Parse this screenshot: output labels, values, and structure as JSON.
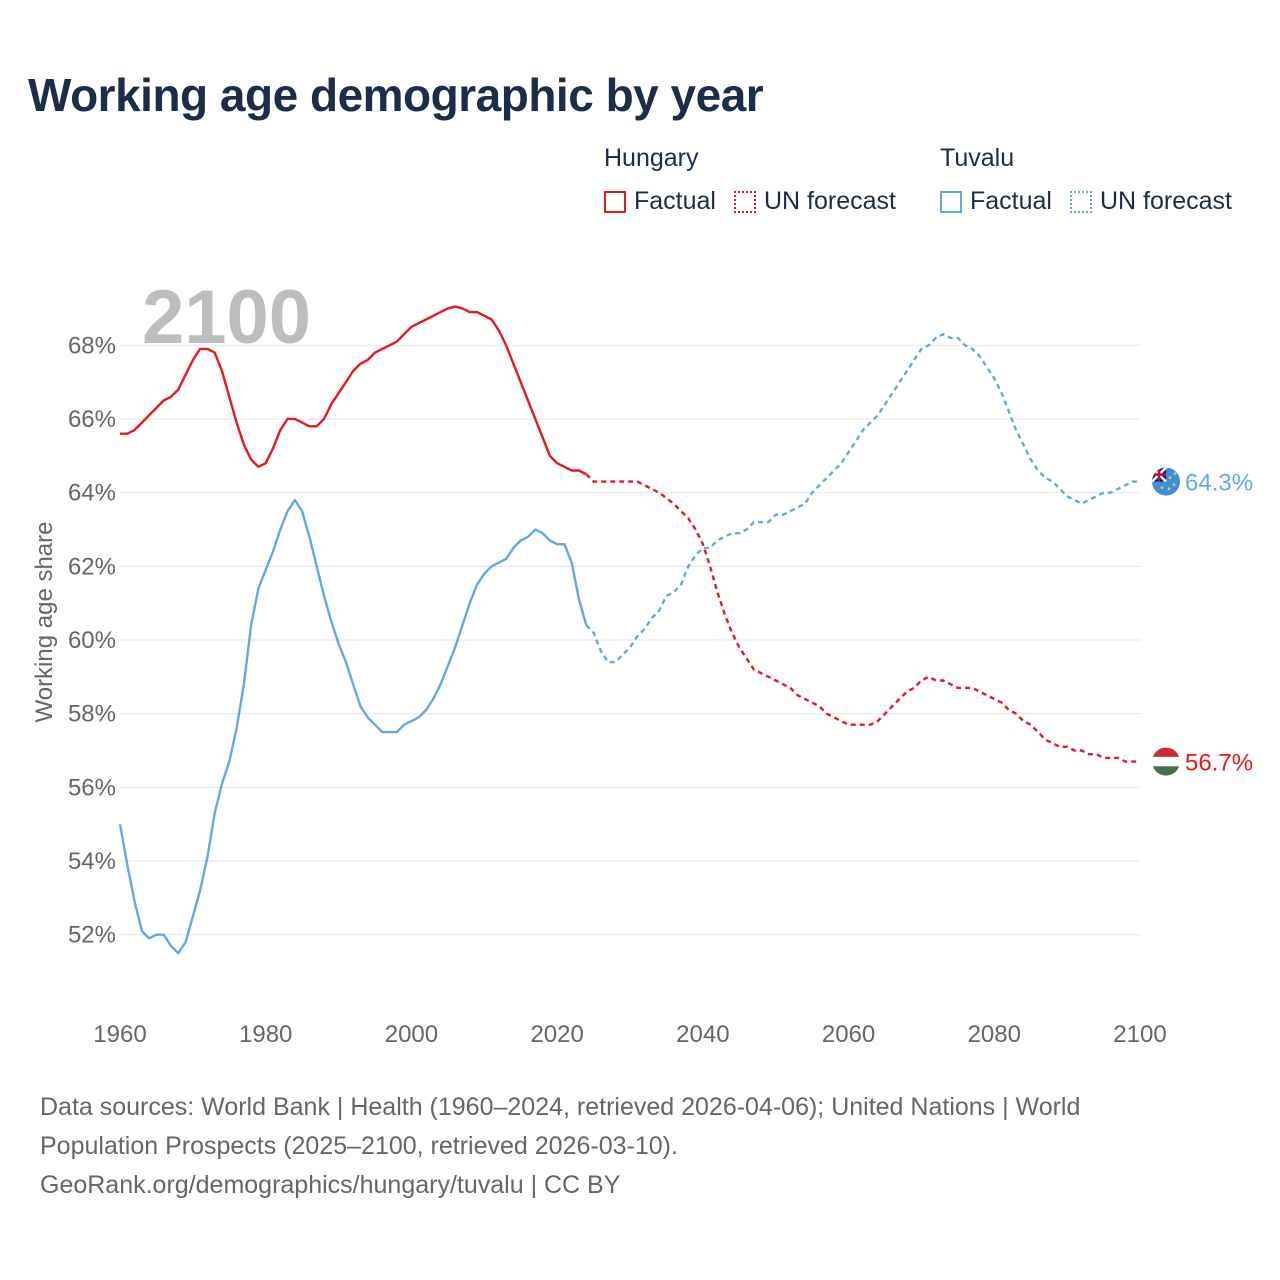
{
  "title": "Working age demographic by year",
  "legend": {
    "countries": [
      {
        "name": "Hungary",
        "factual_label": "Factual",
        "forecast_label": "UN forecast",
        "color": "#e8191b"
      },
      {
        "name": "Tuvalu",
        "factual_label": "Factual",
        "forecast_label": "UN forecast",
        "color": "#63a8e6"
      }
    ]
  },
  "footer": {
    "line1": "Data sources: World Bank | Health (1960–2024, retrieved 2026-04-06); United Nations | World",
    "line2": "Population Prospects (2025–2100, retrieved 2026-03-10).",
    "line3": "GeoRank.org/demographics/hungary/tuvalu | CC BY"
  },
  "chart_data": {
    "type": "line",
    "title": "Working age demographic by year",
    "ylabel": "Working age share",
    "xlabel": "",
    "year_overlay": "2100",
    "xlim": [
      1960,
      2100
    ],
    "ylim": [
      50.5,
      69.5
    ],
    "x_ticks": [
      1960,
      1980,
      2000,
      2020,
      2040,
      2060,
      2080,
      2100
    ],
    "y_ticks": [
      52,
      54,
      56,
      58,
      60,
      62,
      64,
      66,
      68
    ],
    "y_tick_labels": [
      "52%",
      "54%",
      "56%",
      "58%",
      "60%",
      "62%",
      "64%",
      "66%",
      "68%"
    ],
    "factual_end_year": 2024,
    "series": [
      {
        "name": "Hungary",
        "color": "#e8191b",
        "end_label": "56.7%",
        "points": [
          [
            1960,
            65.6
          ],
          [
            1961,
            65.6
          ],
          [
            1962,
            65.7
          ],
          [
            1963,
            65.9
          ],
          [
            1964,
            66.1
          ],
          [
            1965,
            66.3
          ],
          [
            1966,
            66.5
          ],
          [
            1967,
            66.6
          ],
          [
            1968,
            66.8
          ],
          [
            1969,
            67.2
          ],
          [
            1970,
            67.6
          ],
          [
            1971,
            67.9
          ],
          [
            1972,
            67.9
          ],
          [
            1973,
            67.8
          ],
          [
            1974,
            67.3
          ],
          [
            1975,
            66.6
          ],
          [
            1976,
            65.9
          ],
          [
            1977,
            65.3
          ],
          [
            1978,
            64.9
          ],
          [
            1979,
            64.7
          ],
          [
            1980,
            64.8
          ],
          [
            1981,
            65.2
          ],
          [
            1982,
            65.7
          ],
          [
            1983,
            66.0
          ],
          [
            1984,
            66.0
          ],
          [
            1985,
            65.9
          ],
          [
            1986,
            65.8
          ],
          [
            1987,
            65.8
          ],
          [
            1988,
            66.0
          ],
          [
            1989,
            66.4
          ],
          [
            1990,
            66.7
          ],
          [
            1991,
            67.0
          ],
          [
            1992,
            67.3
          ],
          [
            1993,
            67.5
          ],
          [
            1994,
            67.6
          ],
          [
            1995,
            67.8
          ],
          [
            1996,
            67.9
          ],
          [
            1997,
            68.0
          ],
          [
            1998,
            68.1
          ],
          [
            1999,
            68.3
          ],
          [
            2000,
            68.5
          ],
          [
            2001,
            68.6
          ],
          [
            2002,
            68.7
          ],
          [
            2003,
            68.8
          ],
          [
            2004,
            68.9
          ],
          [
            2005,
            69.0
          ],
          [
            2006,
            69.05
          ],
          [
            2007,
            69.0
          ],
          [
            2008,
            68.9
          ],
          [
            2009,
            68.9
          ],
          [
            2010,
            68.8
          ],
          [
            2011,
            68.7
          ],
          [
            2012,
            68.4
          ],
          [
            2013,
            68.0
          ],
          [
            2014,
            67.5
          ],
          [
            2015,
            67.0
          ],
          [
            2016,
            66.5
          ],
          [
            2017,
            66.0
          ],
          [
            2018,
            65.5
          ],
          [
            2019,
            65.0
          ],
          [
            2020,
            64.8
          ],
          [
            2021,
            64.7
          ],
          [
            2022,
            64.6
          ],
          [
            2023,
            64.6
          ],
          [
            2024,
            64.5
          ],
          [
            2025,
            64.3
          ],
          [
            2026,
            64.3
          ],
          [
            2027,
            64.3
          ],
          [
            2028,
            64.3
          ],
          [
            2029,
            64.3
          ],
          [
            2030,
            64.3
          ],
          [
            2031,
            64.3
          ],
          [
            2032,
            64.2
          ],
          [
            2034,
            64.0
          ],
          [
            2036,
            63.7
          ],
          [
            2038,
            63.3
          ],
          [
            2039,
            63.0
          ],
          [
            2040,
            62.6
          ],
          [
            2041,
            62.0
          ],
          [
            2042,
            61.3
          ],
          [
            2043,
            60.7
          ],
          [
            2044,
            60.2
          ],
          [
            2045,
            59.8
          ],
          [
            2046,
            59.5
          ],
          [
            2047,
            59.2
          ],
          [
            2048,
            59.1
          ],
          [
            2049,
            59.0
          ],
          [
            2050,
            58.9
          ],
          [
            2051,
            58.8
          ],
          [
            2052,
            58.7
          ],
          [
            2053,
            58.5
          ],
          [
            2054,
            58.4
          ],
          [
            2055,
            58.3
          ],
          [
            2056,
            58.2
          ],
          [
            2057,
            58.0
          ],
          [
            2058,
            57.9
          ],
          [
            2059,
            57.8
          ],
          [
            2060,
            57.7
          ],
          [
            2061,
            57.7
          ],
          [
            2062,
            57.7
          ],
          [
            2063,
            57.7
          ],
          [
            2064,
            57.8
          ],
          [
            2065,
            58.0
          ],
          [
            2066,
            58.2
          ],
          [
            2067,
            58.4
          ],
          [
            2068,
            58.6
          ],
          [
            2069,
            58.7
          ],
          [
            2070,
            58.9
          ],
          [
            2071,
            59.0
          ],
          [
            2072,
            58.9
          ],
          [
            2073,
            58.9
          ],
          [
            2074,
            58.8
          ],
          [
            2075,
            58.7
          ],
          [
            2076,
            58.7
          ],
          [
            2077,
            58.7
          ],
          [
            2078,
            58.6
          ],
          [
            2079,
            58.5
          ],
          [
            2080,
            58.4
          ],
          [
            2081,
            58.3
          ],
          [
            2082,
            58.1
          ],
          [
            2083,
            58.0
          ],
          [
            2084,
            57.8
          ],
          [
            2085,
            57.7
          ],
          [
            2086,
            57.5
          ],
          [
            2087,
            57.3
          ],
          [
            2088,
            57.2
          ],
          [
            2089,
            57.1
          ],
          [
            2090,
            57.1
          ],
          [
            2091,
            57.0
          ],
          [
            2092,
            57.0
          ],
          [
            2093,
            56.9
          ],
          [
            2094,
            56.9
          ],
          [
            2095,
            56.8
          ],
          [
            2096,
            56.8
          ],
          [
            2097,
            56.8
          ],
          [
            2098,
            56.7
          ],
          [
            2099,
            56.7
          ],
          [
            2100,
            56.7
          ]
        ]
      },
      {
        "name": "Tuvalu",
        "color": "#63a8e6",
        "end_label": "64.3%",
        "points": [
          [
            1960,
            55.0
          ],
          [
            1961,
            53.9
          ],
          [
            1962,
            52.9
          ],
          [
            1963,
            52.1
          ],
          [
            1964,
            51.9
          ],
          [
            1965,
            52.0
          ],
          [
            1966,
            52.0
          ],
          [
            1967,
            51.7
          ],
          [
            1968,
            51.5
          ],
          [
            1969,
            51.8
          ],
          [
            1970,
            52.5
          ],
          [
            1971,
            53.2
          ],
          [
            1972,
            54.1
          ],
          [
            1973,
            55.3
          ],
          [
            1974,
            56.1
          ],
          [
            1975,
            56.7
          ],
          [
            1976,
            57.6
          ],
          [
            1977,
            58.8
          ],
          [
            1978,
            60.4
          ],
          [
            1979,
            61.4
          ],
          [
            1980,
            61.9
          ],
          [
            1981,
            62.4
          ],
          [
            1982,
            63.0
          ],
          [
            1983,
            63.5
          ],
          [
            1984,
            63.8
          ],
          [
            1985,
            63.5
          ],
          [
            1986,
            62.8
          ],
          [
            1987,
            62.0
          ],
          [
            1988,
            61.2
          ],
          [
            1989,
            60.5
          ],
          [
            1990,
            59.9
          ],
          [
            1991,
            59.4
          ],
          [
            1992,
            58.8
          ],
          [
            1993,
            58.2
          ],
          [
            1994,
            57.9
          ],
          [
            1995,
            57.7
          ],
          [
            1996,
            57.5
          ],
          [
            1997,
            57.5
          ],
          [
            1998,
            57.5
          ],
          [
            1999,
            57.7
          ],
          [
            2000,
            57.8
          ],
          [
            2001,
            57.9
          ],
          [
            2002,
            58.1
          ],
          [
            2003,
            58.4
          ],
          [
            2004,
            58.8
          ],
          [
            2005,
            59.3
          ],
          [
            2006,
            59.8
          ],
          [
            2007,
            60.4
          ],
          [
            2008,
            61.0
          ],
          [
            2009,
            61.5
          ],
          [
            2010,
            61.8
          ],
          [
            2011,
            62.0
          ],
          [
            2012,
            62.1
          ],
          [
            2013,
            62.2
          ],
          [
            2014,
            62.5
          ],
          [
            2015,
            62.7
          ],
          [
            2016,
            62.8
          ],
          [
            2017,
            63.0
          ],
          [
            2018,
            62.9
          ],
          [
            2019,
            62.7
          ],
          [
            2020,
            62.6
          ],
          [
            2021,
            62.6
          ],
          [
            2022,
            62.1
          ],
          [
            2023,
            61.1
          ],
          [
            2024,
            60.4
          ],
          [
            2025,
            60.2
          ],
          [
            2026,
            59.7
          ],
          [
            2027,
            59.4
          ],
          [
            2028,
            59.4
          ],
          [
            2029,
            59.6
          ],
          [
            2030,
            59.8
          ],
          [
            2031,
            60.1
          ],
          [
            2032,
            60.3
          ],
          [
            2033,
            60.6
          ],
          [
            2034,
            60.8
          ],
          [
            2035,
            61.2
          ],
          [
            2036,
            61.3
          ],
          [
            2037,
            61.5
          ],
          [
            2038,
            62.0
          ],
          [
            2039,
            62.3
          ],
          [
            2040,
            62.5
          ],
          [
            2041,
            62.5
          ],
          [
            2042,
            62.7
          ],
          [
            2043,
            62.8
          ],
          [
            2044,
            62.9
          ],
          [
            2045,
            62.9
          ],
          [
            2046,
            63.0
          ],
          [
            2047,
            63.2
          ],
          [
            2048,
            63.2
          ],
          [
            2049,
            63.2
          ],
          [
            2050,
            63.4
          ],
          [
            2051,
            63.4
          ],
          [
            2052,
            63.5
          ],
          [
            2053,
            63.6
          ],
          [
            2054,
            63.7
          ],
          [
            2055,
            64.0
          ],
          [
            2056,
            64.2
          ],
          [
            2057,
            64.4
          ],
          [
            2058,
            64.6
          ],
          [
            2059,
            64.8
          ],
          [
            2060,
            65.1
          ],
          [
            2061,
            65.4
          ],
          [
            2062,
            65.7
          ],
          [
            2063,
            65.9
          ],
          [
            2064,
            66.1
          ],
          [
            2065,
            66.4
          ],
          [
            2066,
            66.7
          ],
          [
            2067,
            67.0
          ],
          [
            2068,
            67.3
          ],
          [
            2069,
            67.6
          ],
          [
            2070,
            67.9
          ],
          [
            2071,
            68.0
          ],
          [
            2072,
            68.2
          ],
          [
            2073,
            68.3
          ],
          [
            2074,
            68.2
          ],
          [
            2075,
            68.2
          ],
          [
            2076,
            68.0
          ],
          [
            2077,
            67.9
          ],
          [
            2078,
            67.7
          ],
          [
            2079,
            67.4
          ],
          [
            2080,
            67.1
          ],
          [
            2081,
            66.7
          ],
          [
            2082,
            66.2
          ],
          [
            2083,
            65.7
          ],
          [
            2084,
            65.3
          ],
          [
            2085,
            64.9
          ],
          [
            2086,
            64.6
          ],
          [
            2087,
            64.4
          ],
          [
            2088,
            64.3
          ],
          [
            2089,
            64.1
          ],
          [
            2090,
            63.9
          ],
          [
            2091,
            63.8
          ],
          [
            2092,
            63.7
          ],
          [
            2093,
            63.8
          ],
          [
            2094,
            63.9
          ],
          [
            2095,
            64.0
          ],
          [
            2096,
            64.0
          ],
          [
            2097,
            64.1
          ],
          [
            2098,
            64.2
          ],
          [
            2099,
            64.3
          ],
          [
            2100,
            64.3
          ]
        ]
      }
    ]
  }
}
